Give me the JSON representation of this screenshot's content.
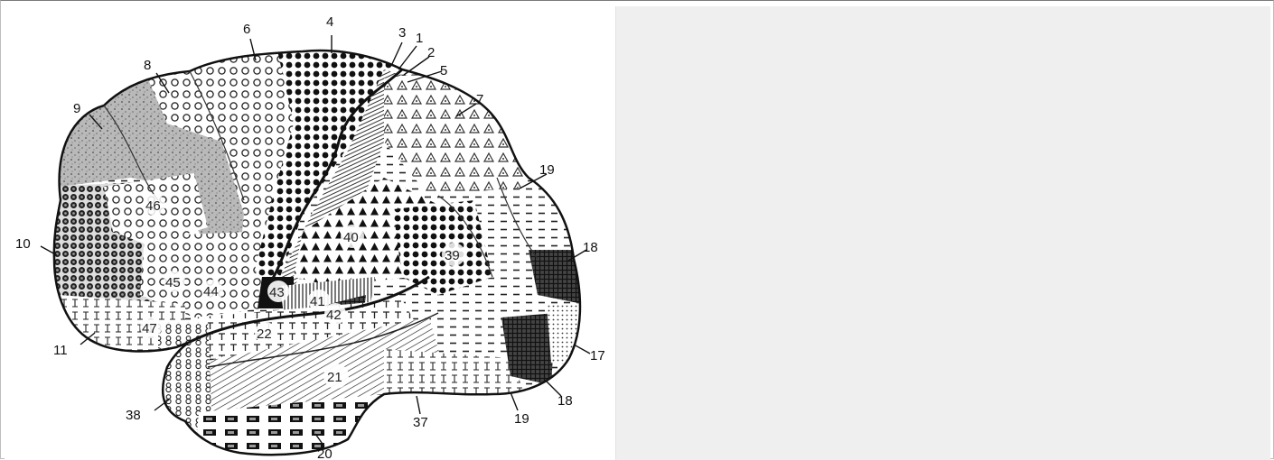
{
  "figure": {
    "type": "brain-map",
    "outer_labels": [
      "1",
      "2",
      "3",
      "4",
      "5",
      "6",
      "7",
      "8",
      "9",
      "10",
      "11",
      "17",
      "18",
      "18",
      "19",
      "19",
      "20",
      "37",
      "38"
    ],
    "inner_labels": [
      "21",
      "22",
      "39",
      "40",
      "41",
      "42",
      "43",
      "44",
      "45",
      "46",
      "47"
    ]
  },
  "labels": {
    "l1": "1",
    "l2": "2",
    "l3": "3",
    "l4": "4",
    "l5": "5",
    "l6": "6",
    "l7": "7",
    "l8": "8",
    "l9": "9",
    "l10": "10",
    "l11": "11",
    "l17": "17",
    "l18a": "18",
    "l18b": "18",
    "l19a": "19",
    "l19b": "19",
    "l20": "20",
    "l21": "21",
    "l22": "22",
    "l37": "37",
    "l38": "38",
    "l39": "39",
    "l40": "40",
    "l41": "41",
    "l42": "42",
    "l43": "43",
    "l44": "44",
    "l45": "45",
    "l46": "46",
    "l47": "47"
  },
  "colors": {
    "panel_background": "#efefef",
    "ink": "#111111"
  }
}
